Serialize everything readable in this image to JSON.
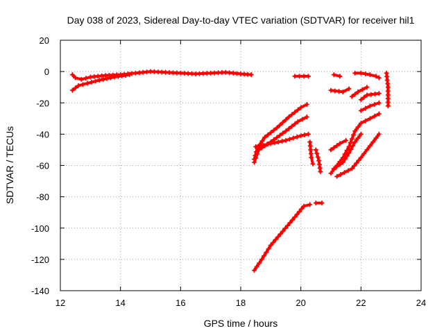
{
  "chart_data": {
    "type": "scatter",
    "title": "Day 038 of 2023, Sidereal Day-to-day VTEC variation (SDTVAR) for receiver hil1",
    "xlabel": "GPS time / hours",
    "ylabel": "SDTVAR / TECUs",
    "xlim": [
      12,
      24
    ],
    "ylim": [
      -140,
      20
    ],
    "xticks": [
      12,
      14,
      16,
      18,
      20,
      22,
      24
    ],
    "yticks": [
      20,
      0,
      -20,
      -40,
      -60,
      -80,
      -100,
      -120,
      -140
    ],
    "grid": true,
    "marker": "+",
    "color": "#ff0000",
    "segments": [
      [
        [
          12.4,
          -2
        ],
        [
          12.5,
          -4
        ],
        [
          12.7,
          -5
        ],
        [
          13.0,
          -3.5
        ],
        [
          13.5,
          -2.5
        ],
        [
          14.0,
          -2
        ],
        [
          14.5,
          -1
        ],
        [
          15.0,
          0
        ],
        [
          15.5,
          -0.5
        ],
        [
          16.0,
          -1
        ],
        [
          16.5,
          -1.5
        ],
        [
          17.0,
          -1
        ],
        [
          17.5,
          -0.5
        ],
        [
          18.0,
          -1.5
        ],
        [
          18.35,
          -2
        ]
      ],
      [
        [
          12.4,
          -12
        ],
        [
          12.6,
          -9
        ],
        [
          12.9,
          -7.5
        ],
        [
          13.3,
          -5.5
        ],
        [
          13.8,
          -3.5
        ],
        [
          14.3,
          -2
        ]
      ],
      [
        [
          19.8,
          -3
        ],
        [
          20.25,
          -3
        ]
      ],
      [
        [
          18.45,
          -56
        ],
        [
          18.55,
          -49
        ],
        [
          18.8,
          -42
        ],
        [
          19.2,
          -36
        ],
        [
          19.6,
          -29
        ],
        [
          20.0,
          -23
        ],
        [
          20.2,
          -21
        ]
      ],
      [
        [
          18.45,
          -58
        ],
        [
          18.6,
          -50
        ],
        [
          19.0,
          -45
        ],
        [
          19.5,
          -38
        ],
        [
          19.9,
          -32
        ],
        [
          20.2,
          -29
        ]
      ],
      [
        [
          18.5,
          -48
        ],
        [
          19.0,
          -46
        ],
        [
          19.5,
          -44
        ],
        [
          20.0,
          -41
        ],
        [
          20.25,
          -40
        ]
      ],
      [
        [
          18.45,
          -127
        ],
        [
          18.7,
          -120
        ],
        [
          19.0,
          -111
        ],
        [
          19.4,
          -102
        ],
        [
          19.8,
          -93
        ],
        [
          20.1,
          -86
        ],
        [
          20.3,
          -85
        ]
      ],
      [
        [
          20.5,
          -84
        ],
        [
          20.7,
          -84
        ]
      ],
      [
        [
          20.3,
          -45
        ],
        [
          20.35,
          -55
        ],
        [
          20.4,
          -59
        ]
      ],
      [
        [
          20.5,
          -50
        ],
        [
          20.6,
          -57
        ],
        [
          20.65,
          -64
        ]
      ],
      [
        [
          21.1,
          -2
        ],
        [
          21.3,
          -3
        ]
      ],
      [
        [
          21.0,
          -12
        ],
        [
          21.4,
          -13
        ],
        [
          21.6,
          -11
        ]
      ],
      [
        [
          21.7,
          -16
        ],
        [
          21.9,
          -13
        ],
        [
          22.2,
          -10
        ]
      ],
      [
        [
          21.0,
          -50
        ],
        [
          21.3,
          -46
        ],
        [
          21.5,
          -44
        ]
      ],
      [
        [
          21.0,
          -65
        ],
        [
          21.2,
          -60
        ],
        [
          21.4,
          -55
        ],
        [
          21.6,
          -48
        ],
        [
          21.8,
          -38
        ],
        [
          22.0,
          -33
        ],
        [
          22.3,
          -30
        ],
        [
          22.6,
          -27
        ]
      ],
      [
        [
          21.1,
          -62
        ],
        [
          21.4,
          -58
        ],
        [
          21.6,
          -52
        ],
        [
          21.8,
          -45
        ],
        [
          22.0,
          -40
        ]
      ],
      [
        [
          21.2,
          -67
        ],
        [
          21.7,
          -62
        ],
        [
          22.0,
          -55
        ],
        [
          22.2,
          -50
        ],
        [
          22.4,
          -45
        ],
        [
          22.6,
          -40
        ]
      ],
      [
        [
          21.8,
          -1
        ],
        [
          22.0,
          -1
        ],
        [
          22.3,
          -2
        ],
        [
          22.5,
          -3
        ],
        [
          22.6,
          -4
        ]
      ],
      [
        [
          22.0,
          -25
        ],
        [
          22.3,
          -22
        ],
        [
          22.6,
          -20
        ]
      ],
      [
        [
          22.0,
          -18
        ],
        [
          22.2,
          -15
        ],
        [
          22.6,
          -14
        ]
      ],
      [
        [
          22.85,
          -1
        ],
        [
          22.9,
          -10
        ],
        [
          22.9,
          -15
        ],
        [
          22.9,
          -22
        ]
      ]
    ]
  }
}
